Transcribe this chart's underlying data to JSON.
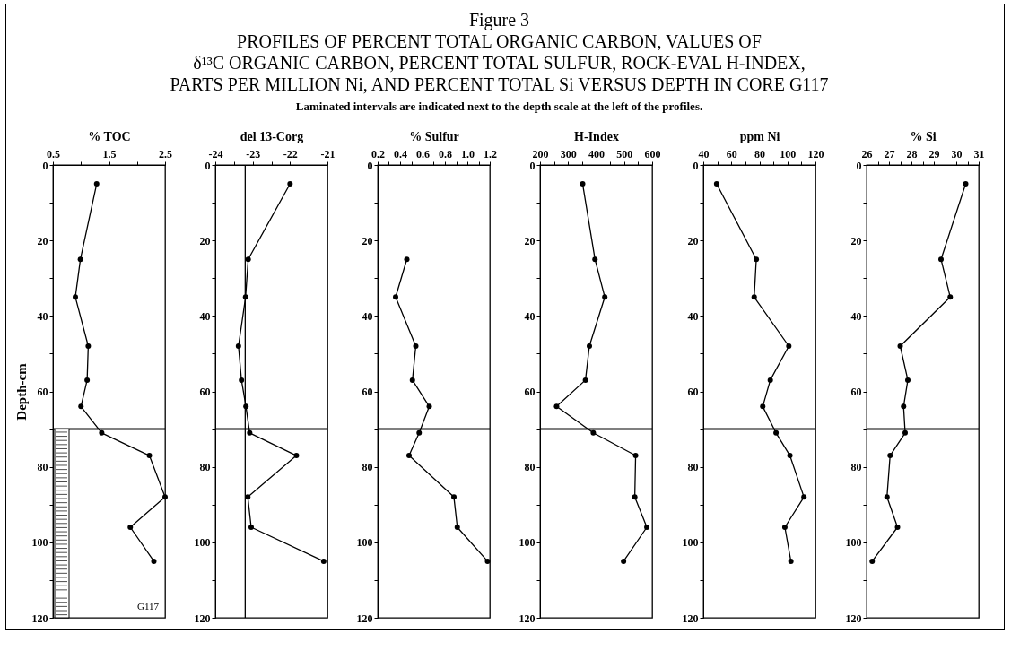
{
  "chart_data": [
    {
      "type": "line",
      "title": "Figure 3\nPROFILES OF PERCENT TOTAL ORGANIC CARBON, VALUES OF\nδ¹³C ORGANIC CARBON, PERCENT TOTAL SULFUR, ROCK-EVAL H-INDEX,\nPARTS PER MILLION Ni, AND PERCENT TOTAL Si VERSUS DEPTH IN CORE G117\nLaminated intervals are indicated next to the depth scale at the left of the profiles.",
      "xlabel": "% TOC",
      "ylabel": "Depth-cm",
      "xlim": [
        0.5,
        2.5
      ],
      "xticks": [
        0.5,
        {
          "value": 1,
          "label": null
        },
        1.5,
        {
          "value": 2,
          "label": null
        },
        2.5
      ],
      "ylim": [
        120,
        0
      ],
      "yticks": [
        0,
        {
          "value": 10,
          "label": null
        },
        20,
        {
          "value": 30,
          "label": null
        },
        40,
        {
          "value": 50,
          "label": null
        },
        60,
        {
          "value": 70,
          "label": null
        },
        80,
        {
          "value": 90,
          "label": null
        },
        100,
        {
          "value": 110,
          "label": null
        },
        120
      ],
      "grid": false,
      "marker": "circle",
      "annotations": [
        "G117"
      ],
      "ref_lines": [
        {
          "axis": "y",
          "value": 70
        }
      ],
      "series": [
        {
          "color": "#000000",
          "x": [
            1.28,
            0.99,
            0.9,
            1.13,
            1.11,
            1.0,
            1.37,
            2.22,
            2.5,
            1.88,
            2.3
          ],
          "values": [
            5,
            25,
            35,
            48,
            57,
            64,
            71,
            77,
            88,
            96,
            105
          ]
        }
      ]
    },
    {
      "type": "line",
      "xlabel": "del 13-Corg",
      "xlim": [
        -24,
        -21
      ],
      "xticks": [
        -24,
        {
          "value": -23.5,
          "label": null
        },
        -23,
        {
          "value": -22.5,
          "label": null
        },
        -22,
        {
          "value": -21.5,
          "label": null
        },
        -21
      ],
      "ylim": [
        120,
        0
      ],
      "yticks": [
        0,
        {
          "value": 10,
          "label": null
        },
        20,
        {
          "value": 30,
          "label": null
        },
        40,
        {
          "value": 50,
          "label": null
        },
        60,
        {
          "value": 70,
          "label": null
        },
        80,
        {
          "value": 90,
          "label": null
        },
        100,
        {
          "value": 110,
          "label": null
        },
        120
      ],
      "grid": false,
      "marker": "circle",
      "ref_lines": [
        {
          "axis": "y",
          "value": 70
        },
        {
          "axis": "x",
          "value": -23.2
        }
      ],
      "series": [
        {
          "color": "#000000",
          "x": [
            -22.0,
            -23.12,
            -23.19,
            -23.38,
            -23.3,
            -23.18,
            -23.08,
            -21.83,
            -23.13,
            -23.04,
            -21.1
          ],
          "values": [
            5,
            25,
            35,
            48,
            57,
            64,
            71,
            77,
            88,
            96,
            105
          ]
        }
      ]
    },
    {
      "type": "line",
      "xlabel": "% Sulfur",
      "xlim": [
        0.2,
        1.2
      ],
      "xticks": [
        0.2,
        {
          "value": 0.3,
          "label": null
        },
        0.4,
        {
          "value": 0.5,
          "label": null
        },
        0.6,
        {
          "value": 0.7,
          "label": null
        },
        0.8,
        {
          "value": 0.9,
          "label": null
        },
        {
          "value": 1,
          "label": "1.0"
        },
        {
          "value": 1.1,
          "label": null
        },
        1.2
      ],
      "ylim": [
        120,
        0
      ],
      "yticks": [
        0,
        {
          "value": 10,
          "label": null
        },
        20,
        {
          "value": 30,
          "label": null
        },
        40,
        {
          "value": 50,
          "label": null
        },
        60,
        {
          "value": 70,
          "label": null
        },
        80,
        {
          "value": 90,
          "label": null
        },
        100,
        {
          "value": 110,
          "label": null
        },
        120
      ],
      "grid": false,
      "marker": "circle",
      "ref_lines": [
        {
          "axis": "y",
          "value": 70
        }
      ],
      "series": [
        {
          "color": "#000000",
          "x": [
            0.46,
            0.36,
            0.54,
            0.51,
            0.66,
            0.57,
            0.48,
            0.88,
            0.91,
            1.18
          ],
          "values": [
            25,
            35,
            48,
            57,
            64,
            71,
            77,
            88,
            96,
            105
          ]
        }
      ]
    },
    {
      "type": "line",
      "xlabel": "H-Index",
      "xlim": [
        200,
        600
      ],
      "xticks": [
        200,
        {
          "value": 250,
          "label": null
        },
        300,
        {
          "value": 350,
          "label": null
        },
        400,
        {
          "value": 450,
          "label": null
        },
        500,
        {
          "value": 550,
          "label": null
        },
        600
      ],
      "ylim": [
        120,
        0
      ],
      "yticks": [
        0,
        {
          "value": 10,
          "label": null
        },
        20,
        {
          "value": 30,
          "label": null
        },
        40,
        {
          "value": 50,
          "label": null
        },
        60,
        {
          "value": 70,
          "label": null
        },
        80,
        {
          "value": 90,
          "label": null
        },
        100,
        {
          "value": 110,
          "label": null
        },
        120
      ],
      "grid": false,
      "marker": "circle",
      "ref_lines": [
        {
          "axis": "y",
          "value": 70
        }
      ],
      "series": [
        {
          "color": "#000000",
          "x": [
            352,
            396,
            431,
            376,
            362,
            259,
            390,
            541,
            538,
            581,
            498
          ],
          "values": [
            5,
            25,
            35,
            48,
            57,
            64,
            71,
            77,
            88,
            96,
            105
          ]
        }
      ]
    },
    {
      "type": "line",
      "xlabel": "ppm Ni",
      "xlim": [
        40,
        120
      ],
      "xticks": [
        40,
        {
          "value": 50,
          "label": null
        },
        60,
        {
          "value": 70,
          "label": null
        },
        80,
        {
          "value": 90,
          "label": null
        },
        100,
        {
          "value": 110,
          "label": null
        },
        120
      ],
      "ylim": [
        120,
        0
      ],
      "yticks": [
        0,
        {
          "value": 10,
          "label": null
        },
        20,
        {
          "value": 30,
          "label": null
        },
        40,
        {
          "value": 50,
          "label": null
        },
        60,
        {
          "value": 70,
          "label": null
        },
        80,
        {
          "value": 90,
          "label": null
        },
        100,
        {
          "value": 110,
          "label": null
        },
        120
      ],
      "grid": false,
      "marker": "circle",
      "ref_lines": [
        {
          "axis": "y",
          "value": 70
        }
      ],
      "series": [
        {
          "color": "#000000",
          "x": [
            49.5,
            77.8,
            76.3,
            101,
            87.8,
            82.4,
            91.9,
            101.8,
            111.8,
            98.2,
            102.5
          ],
          "values": [
            5,
            25,
            35,
            48,
            57,
            64,
            71,
            77,
            88,
            96,
            105
          ]
        }
      ]
    },
    {
      "type": "line",
      "xlabel": "% Si",
      "xlim": [
        26,
        31
      ],
      "xticks": [
        26,
        {
          "value": 26.5,
          "label": null
        },
        27,
        {
          "value": 27.5,
          "label": null
        },
        28,
        {
          "value": 28.5,
          "label": null
        },
        29,
        {
          "value": 29.5,
          "label": null
        },
        30,
        {
          "value": 30.5,
          "label": null
        },
        31
      ],
      "ylim": [
        120,
        0
      ],
      "yticks": [
        0,
        {
          "value": 10,
          "label": null
        },
        20,
        {
          "value": 30,
          "label": null
        },
        40,
        {
          "value": 50,
          "label": null
        },
        60,
        {
          "value": 70,
          "label": null
        },
        80,
        {
          "value": 90,
          "label": null
        },
        100,
        {
          "value": 110,
          "label": null
        },
        120
      ],
      "grid": false,
      "marker": "circle",
      "ref_lines": [
        {
          "axis": "y",
          "value": 70
        }
      ],
      "series": [
        {
          "color": "#000000",
          "x": [
            30.42,
            29.32,
            29.73,
            27.5,
            27.84,
            27.65,
            27.72,
            27.05,
            26.91,
            27.38,
            26.25
          ],
          "values": [
            5,
            25,
            35,
            48,
            57,
            64,
            71,
            77,
            88,
            96,
            105
          ]
        }
      ]
    }
  ]
}
